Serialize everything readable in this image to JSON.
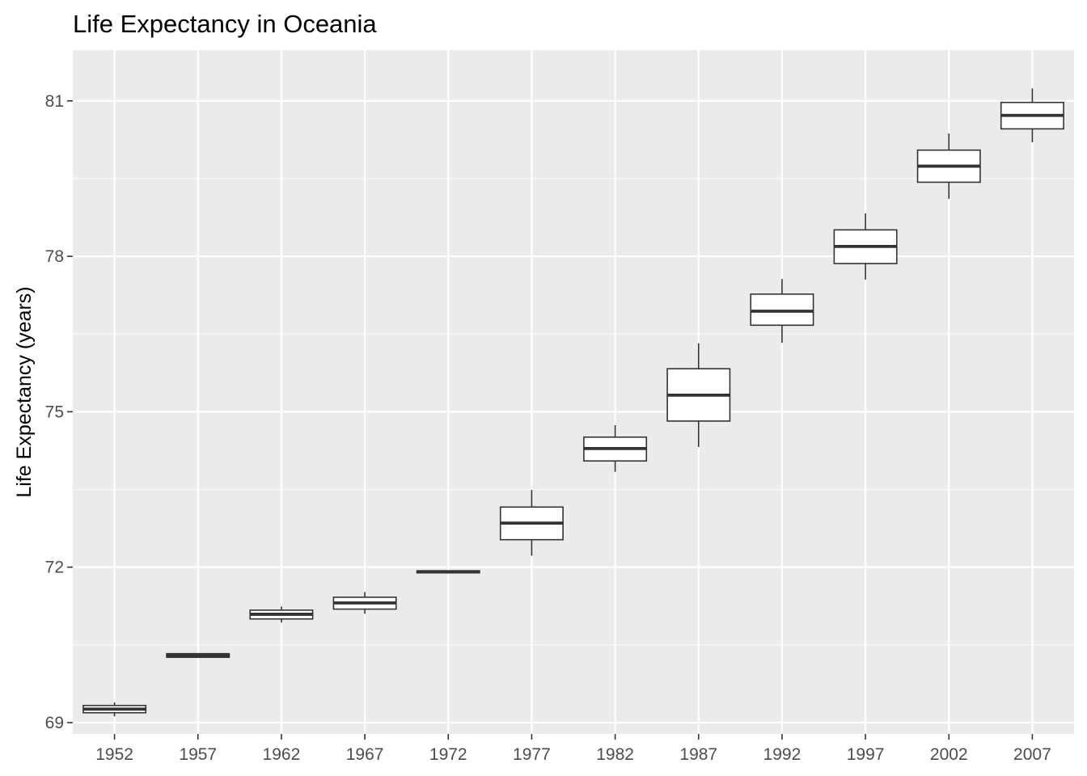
{
  "chart_data": {
    "type": "boxplot",
    "title": "Life Expectancy in Oceania",
    "xlabel": "",
    "ylabel": "Life Expectancy (years)",
    "categories": [
      "1952",
      "1957",
      "1962",
      "1967",
      "1972",
      "1977",
      "1982",
      "1987",
      "1992",
      "1997",
      "2002",
      "2007"
    ],
    "boxes": [
      {
        "min": 69.12,
        "q1": 69.19,
        "median": 69.26,
        "q3": 69.33,
        "max": 69.39
      },
      {
        "min": 70.26,
        "q1": 70.26,
        "median": 70.3,
        "q3": 70.33,
        "max": 70.33
      },
      {
        "min": 70.93,
        "q1": 71.0,
        "median": 71.09,
        "q3": 71.17,
        "max": 71.24
      },
      {
        "min": 71.1,
        "q1": 71.19,
        "median": 71.31,
        "q3": 71.42,
        "max": 71.52
      },
      {
        "min": 71.89,
        "q1": 71.89,
        "median": 71.91,
        "q3": 71.93,
        "max": 71.93
      },
      {
        "min": 72.22,
        "q1": 72.53,
        "median": 72.85,
        "q3": 73.16,
        "max": 73.49
      },
      {
        "min": 73.84,
        "q1": 74.05,
        "median": 74.29,
        "q3": 74.51,
        "max": 74.74
      },
      {
        "min": 74.32,
        "q1": 74.82,
        "median": 75.32,
        "q3": 75.83,
        "max": 76.32
      },
      {
        "min": 76.33,
        "q1": 76.67,
        "median": 76.94,
        "q3": 77.27,
        "max": 77.56
      },
      {
        "min": 77.55,
        "q1": 77.86,
        "median": 78.19,
        "q3": 78.51,
        "max": 78.83
      },
      {
        "min": 79.11,
        "q1": 79.43,
        "median": 79.74,
        "q3": 80.05,
        "max": 80.37
      },
      {
        "min": 80.2,
        "q1": 80.46,
        "median": 80.72,
        "q3": 80.97,
        "max": 81.24
      }
    ],
    "yticks": [
      69,
      72,
      75,
      78,
      81
    ],
    "ylim": [
      68.78,
      81.98
    ],
    "grid": true,
    "legend": "none",
    "colors": {
      "panel_background": "#ebebeb",
      "grid_major": "#ffffff",
      "box_fill": "#ffffff",
      "box_stroke": "#333333",
      "tick_text": "#4d4d4d"
    }
  }
}
